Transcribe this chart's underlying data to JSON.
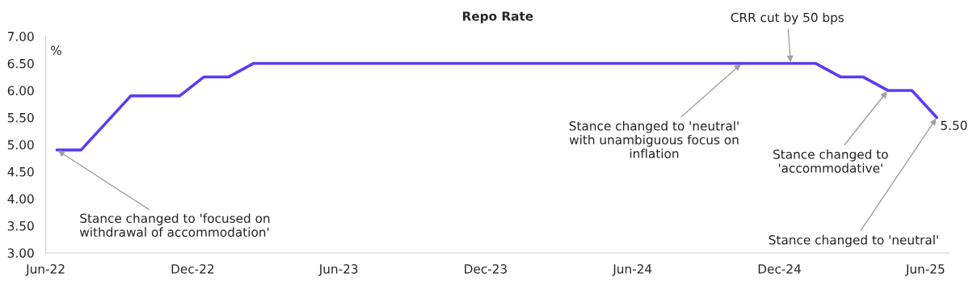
{
  "chart_data": {
    "type": "line",
    "title": "Repo Rate",
    "ylabel": "%",
    "x": [
      "2022-06-15",
      "2022-07-15",
      "2022-08-15",
      "2022-09-15",
      "2022-10-15",
      "2022-11-15",
      "2022-12-15",
      "2023-01-15",
      "2023-02-15",
      "2023-03-15",
      "2023-04-15",
      "2023-05-15",
      "2023-06-15",
      "2023-07-15",
      "2023-08-15",
      "2023-09-15",
      "2023-10-15",
      "2023-11-15",
      "2023-12-15",
      "2024-01-15",
      "2024-02-15",
      "2024-03-15",
      "2024-04-15",
      "2024-05-15",
      "2024-06-15",
      "2024-07-15",
      "2024-08-15",
      "2024-09-15",
      "2024-10-15",
      "2024-11-15",
      "2024-12-15",
      "2025-01-15",
      "2025-02-15",
      "2025-03-15",
      "2025-04-15",
      "2025-05-15",
      "2025-06-15"
    ],
    "series": [
      {
        "color": "#5b3cf5",
        "values": [
          4.9,
          4.9,
          5.4,
          5.9,
          5.9,
          5.9,
          6.25,
          6.25,
          6.5,
          6.5,
          6.5,
          6.5,
          6.5,
          6.5,
          6.5,
          6.5,
          6.5,
          6.5,
          6.5,
          6.5,
          6.5,
          6.5,
          6.5,
          6.5,
          6.5,
          6.5,
          6.5,
          6.5,
          6.5,
          6.5,
          6.5,
          6.5,
          6.25,
          6.25,
          6.0,
          6.0,
          5.5
        ],
        "value_labels": [
          null,
          null,
          null,
          null,
          null,
          null,
          null,
          null,
          null,
          null,
          null,
          null,
          null,
          null,
          null,
          null,
          null,
          null,
          null,
          null,
          null,
          null,
          null,
          null,
          null,
          null,
          null,
          null,
          null,
          null,
          null,
          null,
          null,
          null,
          null,
          null,
          "5.50"
        ]
      }
    ],
    "xlim": [
      "2022-06-01",
      "2025-07-01"
    ],
    "xticks": [
      {
        "value": "2022-06-01",
        "label": "Jun-22"
      },
      {
        "value": "2022-12-01",
        "label": "Dec-22"
      },
      {
        "value": "2023-06-01",
        "label": "Jun-23"
      },
      {
        "value": "2023-12-01",
        "label": "Dec-23"
      },
      {
        "value": "2024-06-01",
        "label": "Jun-24"
      },
      {
        "value": "2024-12-01",
        "label": "Dec-24"
      },
      {
        "value": "2025-06-01",
        "label": "Jun-25"
      }
    ],
    "ylim": [
      3,
      7
    ],
    "yticks": [
      {
        "value": 3,
        "label": "3.00"
      },
      {
        "value": 3.5,
        "label": "3.50"
      },
      {
        "value": 4,
        "label": "4.00"
      },
      {
        "value": 4.5,
        "label": "4.50"
      },
      {
        "value": 5,
        "label": "5.00"
      },
      {
        "value": 5.5,
        "label": "5.50"
      },
      {
        "value": 6,
        "label": "6.00"
      },
      {
        "value": 6.5,
        "label": "6.50"
      },
      {
        "value": 7,
        "label": "7.00"
      }
    ],
    "grid": false,
    "legend": false,
    "marker": "none",
    "line_style": "solid",
    "annotations": [
      {
        "text": "Stance changed to 'focused on\nwithdrawal of accommodation'",
        "x": "2022-06-15",
        "y": 4.9
      },
      {
        "text": "Stance changed to 'neutral'\nwith unambiguous focus on\ninflation",
        "x": "2024-10-15",
        "y": 6.5
      },
      {
        "text": "CRR cut by 50 bps",
        "x": "2024-12-15",
        "y": 6.5
      },
      {
        "text": "Stance changed to\n'accommodative'",
        "x": "2025-04-15",
        "y": 6.0
      },
      {
        "text": "Stance changed to 'neutral'",
        "x": "2025-06-15",
        "y": 5.5
      }
    ]
  }
}
